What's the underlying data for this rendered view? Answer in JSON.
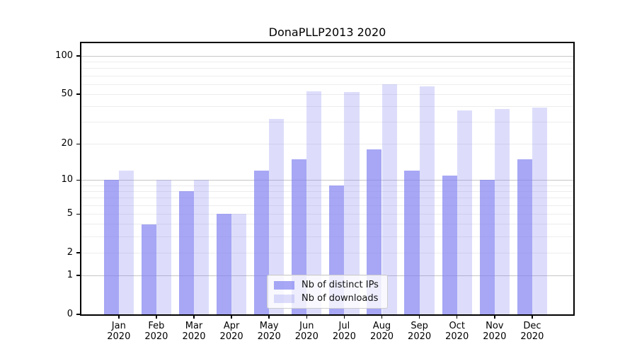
{
  "figure": {
    "title": "DonaPLLP2013 2020"
  },
  "chart_data": {
    "type": "bar",
    "title": "DonaPLLP2013 2020",
    "categories": [
      "Jan",
      "Feb",
      "Mar",
      "Apr",
      "May",
      "Jun",
      "Jul",
      "Aug",
      "Sep",
      "Oct",
      "Nov",
      "Dec"
    ],
    "year_label": "2020",
    "series": [
      {
        "name": "Nb of distinct IPs",
        "values": [
          10,
          4,
          8,
          5,
          12,
          15,
          9,
          18,
          12,
          11,
          10,
          15
        ]
      },
      {
        "name": "Nb of downloads",
        "values": [
          12,
          10,
          10,
          5,
          32,
          53,
          52,
          60,
          58,
          37,
          38,
          39
        ]
      }
    ],
    "xlabel": "",
    "ylabel": "",
    "yscale": "log10(1+v)",
    "ytick_values": [
      0,
      1,
      2,
      5,
      10,
      20,
      50,
      100
    ],
    "ytick_labels": [
      "0",
      "1",
      "2",
      "5",
      "10",
      "20",
      "50",
      "100"
    ],
    "major_gridlines": [
      1,
      10,
      100
    ],
    "minor_gridlines": [
      2,
      3,
      4,
      5,
      6,
      7,
      8,
      9,
      20,
      30,
      40,
      50,
      60,
      70,
      80,
      90
    ],
    "ylim": [
      0,
      125
    ],
    "grid": true,
    "legend_position": "lower center",
    "legend_entries": [
      "Nb of distinct IPs",
      "Nb of downloads"
    ]
  },
  "colors": {
    "bar_base": "#7d7df0",
    "series_alphas": [
      0.68,
      0.26
    ],
    "grid_minor": "#ededed",
    "grid_major": "#c6c6c6",
    "axis": "#000000",
    "background": "#ffffff"
  }
}
